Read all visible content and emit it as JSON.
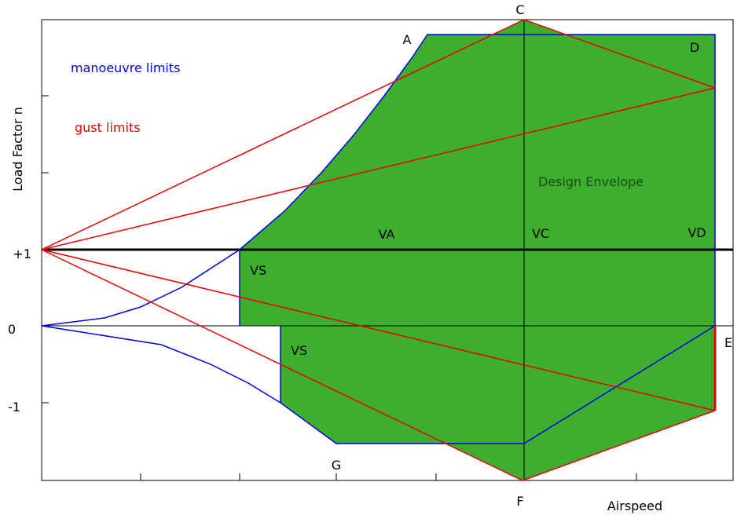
{
  "axes": {
    "y_label": "Load Factor n",
    "x_label": "Airspeed",
    "y_tick_labels": [
      "+1",
      "0",
      "-1"
    ]
  },
  "legend": {
    "manoeuvre": "manoeuvre limits",
    "gust": "gust limits"
  },
  "points": {
    "A": "A",
    "C": "C",
    "D": "D",
    "E": "E",
    "F": "F",
    "G": "G"
  },
  "speeds": {
    "VS_pos": "VS",
    "VS_neg": "VS",
    "VA": "VA",
    "VC": "VC",
    "VD": "VD"
  },
  "region": "Design Envelope"
}
